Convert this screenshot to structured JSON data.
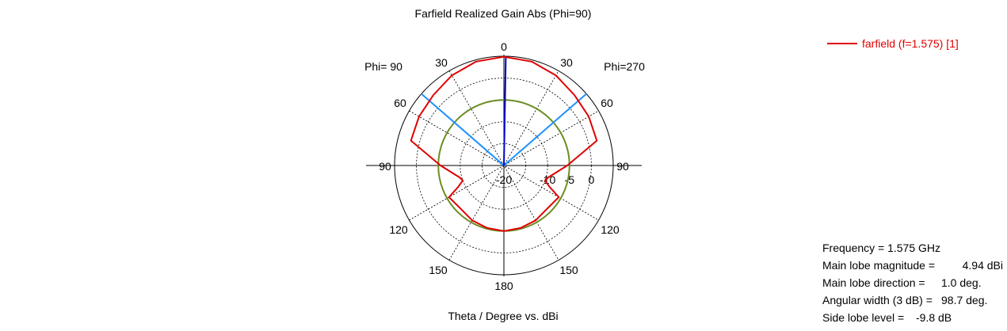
{
  "chart_data": {
    "type": "polar",
    "title": "Farfield Realized Gain Abs (Phi=90)",
    "xlabel": "Theta / Degree vs. dBi",
    "left_label": "Phi= 90",
    "right_label": "Phi=270",
    "angle_ticks": [
      "0",
      "30",
      "60",
      "90",
      "120",
      "150",
      "180"
    ],
    "radial_ticks": [
      "-20",
      "-10",
      "-5",
      "0"
    ],
    "radial_range_dB": [
      -20,
      5
    ],
    "grid": true,
    "legend_position": "top-right",
    "series": [
      {
        "name": "farfield (f=1.575) [1]",
        "color": "#e00000",
        "theta_deg": [
          0,
          15,
          30,
          45,
          60,
          75,
          90,
          105,
          110,
          115,
          120,
          125,
          135,
          150,
          165,
          180
        ],
        "gain_dBi": [
          4.9,
          4.6,
          3.8,
          2.8,
          2.4,
          2.0,
          -5.5,
          -9.5,
          -10,
          -8.5,
          -5.5,
          -5.8,
          -6.0,
          -5.5,
          -5.2,
          -5.0
        ]
      }
    ],
    "markers": {
      "main_lobe_color": "#0000cc",
      "main_lobe_theta_deg": 1.0,
      "main_lobe_level_dBi": 4.94,
      "beamwidth_lines_color": "#1e90ff",
      "beamwidth_lines_deg": [
        -49,
        49
      ],
      "beamwidth_limit_dBi": 5,
      "threshold_circle_color": "#6b8e23",
      "threshold_circle_dBi": -5
    }
  },
  "info": {
    "freq_text": "Frequency = 1.575 GHz",
    "mag_key": "Main lobe magnitude =",
    "mag_val": "4.94 dBi",
    "dir_key": "Main lobe direction =",
    "dir_val": "1.0 deg.",
    "width_key": "Angular width (3 dB) =",
    "width_val": "98.7 deg.",
    "side_key": "Side lobe level =",
    "side_val": "-9.8 dB"
  }
}
